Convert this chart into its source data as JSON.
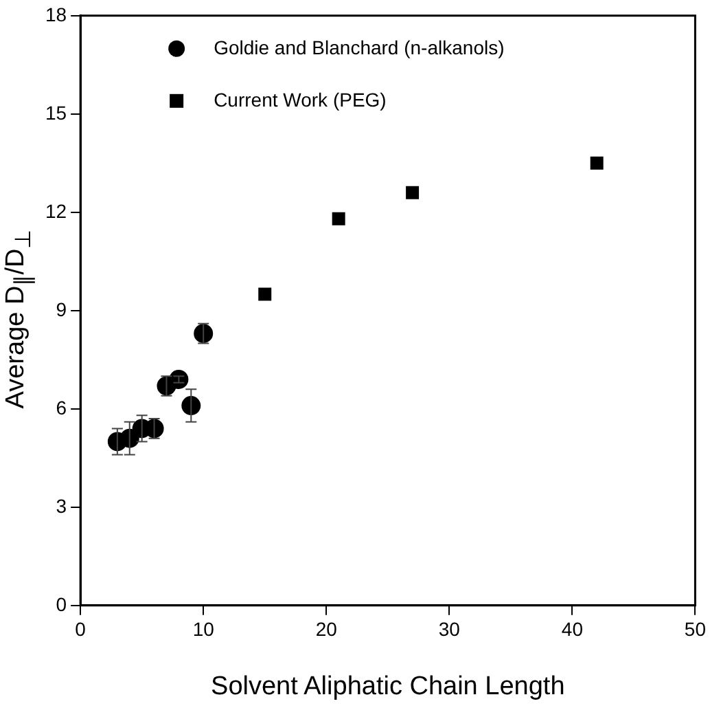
{
  "chart_data": {
    "type": "scatter",
    "xlabel": "Solvent Aliphatic Chain Length",
    "ylabel": "Average D$_{∥}$/D$_{⊥}$",
    "xlim": [
      0,
      50
    ],
    "xticks": [
      0,
      10,
      20,
      30,
      40,
      50
    ],
    "ylim": [
      0,
      18
    ],
    "yticks": [
      0,
      3,
      6,
      9,
      12,
      15,
      18
    ],
    "legend": "top left",
    "series": [
      {
        "name": "Goldie and Blanchard (n-alkanols)",
        "color": "#000000",
        "marker": "circle",
        "x": [
          3,
          4,
          5,
          6,
          7,
          8,
          9,
          10
        ],
        "values": [
          5.0,
          5.1,
          5.4,
          5.4,
          6.7,
          6.9,
          6.1,
          8.3
        ],
        "errors": [
          0.4,
          0.5,
          0.4,
          0.3,
          0.3,
          0.1,
          0.5,
          0.3
        ]
      },
      {
        "name": "Current Work (PEG)",
        "color": "#000000",
        "marker": "square",
        "x": [
          15,
          21,
          27,
          42
        ],
        "values": [
          9.5,
          11.8,
          12.6,
          13.5
        ]
      }
    ]
  }
}
